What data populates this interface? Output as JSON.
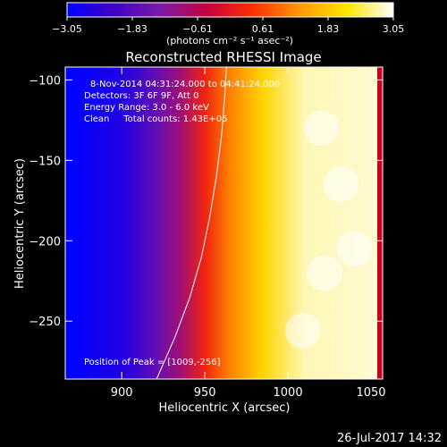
{
  "chart_data": {
    "type": "heatmap",
    "title": "Reconstructed RHESSI Image",
    "xlabel": "Heliocentric X (arcsec)",
    "ylabel": "Heliocentric Y (arcsec)",
    "xlim": [
      866,
      1057
    ],
    "ylim": [
      -286,
      -92
    ],
    "x_ticks": [
      900,
      950,
      1000,
      1050
    ],
    "y_ticks": [
      -100,
      -150,
      -200,
      -250
    ],
    "x_tick_labels": [
      "900",
      "950",
      "1000",
      "1050"
    ],
    "y_tick_labels": [
      "−100",
      "−150",
      "−200",
      "−250"
    ],
    "colorbar": {
      "range": [
        -3.05,
        3.05
      ],
      "ticks": [
        -3.05,
        -1.83,
        -0.61,
        0.61,
        1.83,
        3.05
      ],
      "tick_labels": [
        "−3.05",
        "−1.83",
        "−0.61",
        "0.61",
        "1.83",
        "3.05"
      ],
      "units_label": "(photons cm⁻² s⁻¹ asec⁻²)",
      "colormap": [
        "#0000ff",
        "#3f00c8",
        "#7a1aa8",
        "#c8003c",
        "#ff3000",
        "#ff9a00",
        "#ffe400",
        "#ffffff"
      ]
    },
    "annotations": [
      "8-Nov-2014 04:31:24.000 to 04:41:24.000",
      "Detectors: 3F 6F 9F, Att 0",
      "Energy Range: 3.0 - 6.0 keV",
      "Clean     Total counts: 1.43E+05",
      "Position of Peak = [1009,-256]"
    ],
    "limb_points": [
      [
        921,
        -286
      ],
      [
        932,
        -260
      ],
      [
        941,
        -235
      ],
      [
        948,
        -210
      ],
      [
        953,
        -185
      ],
      [
        957,
        -160
      ],
      [
        960,
        -135
      ],
      [
        962,
        -110
      ],
      [
        963,
        -92
      ]
    ],
    "emission_profile": [
      {
        "x": 870,
        "value": -3.05
      },
      {
        "x": 900,
        "value": -2.6
      },
      {
        "x": 920,
        "value": -1.7
      },
      {
        "x": 935,
        "value": -0.9
      },
      {
        "x": 950,
        "value": 0.2
      },
      {
        "x": 965,
        "value": 1.1
      },
      {
        "x": 985,
        "value": 2.0
      },
      {
        "x": 1010,
        "value": 2.8
      },
      {
        "x": 1057,
        "value": 2.9
      }
    ],
    "peak": [
      1009,
      -256
    ]
  },
  "footer": {
    "date": "26-Jul-2017 14:32"
  }
}
